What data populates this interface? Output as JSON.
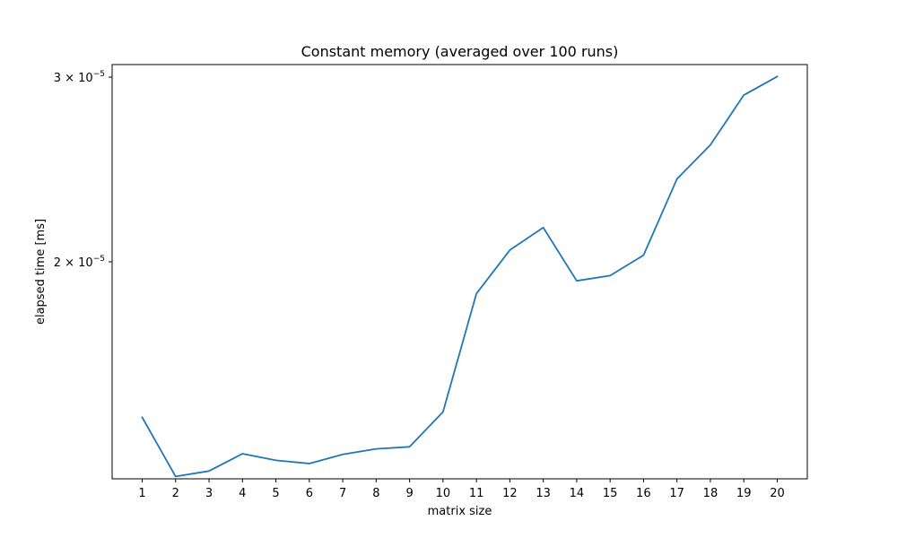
{
  "chart_data": {
    "type": "line",
    "title": "Constant memory (averaged over 100 runs)",
    "xlabel": "matrix size",
    "ylabel": "elapsed time [ms]",
    "x": [
      1,
      2,
      3,
      4,
      5,
      6,
      7,
      8,
      9,
      10,
      11,
      12,
      13,
      14,
      15,
      16,
      17,
      18,
      19,
      20
    ],
    "x_ticks": [
      "1",
      "2",
      "3",
      "4",
      "5",
      "6",
      "7",
      "8",
      "9",
      "10",
      "11",
      "12",
      "13",
      "14",
      "15",
      "16",
      "17",
      "18",
      "19",
      "20"
    ],
    "series": [
      {
        "color": "#1f77b4",
        "values": [
          1.421e-05,
          1.248e-05,
          1.263e-05,
          1.312e-05,
          1.293e-05,
          1.284e-05,
          1.31e-05,
          1.326e-05,
          1.332e-05,
          1.438e-05,
          1.865e-05,
          2.052e-05,
          2.156e-05,
          1.918e-05,
          1.94e-05,
          2.029e-05,
          2.399e-05,
          2.585e-05,
          2.884e-05,
          3.004e-05
        ]
      }
    ],
    "y_scale": "log",
    "xlim": [
      0.1,
      20.9
    ],
    "ylim": [
      1.2416e-05,
      3.0841e-05
    ],
    "y_ticks": [
      {
        "value": 2e-05,
        "mantissa": "2 × 10",
        "exponent": "−5"
      },
      {
        "value": 3e-05,
        "mantissa": "3 × 10",
        "exponent": "−5"
      }
    ],
    "grid": false,
    "legend": "none"
  }
}
